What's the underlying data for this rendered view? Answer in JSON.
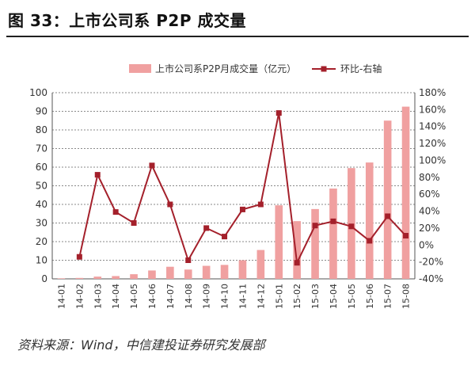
{
  "figure": {
    "title": "图 33：上市公司系 P2P 成交量",
    "source": "资料来源：Wind，中信建投证券研究发展部"
  },
  "colors": {
    "bar": "#f0a0a0",
    "line": "#a4202b",
    "grid": "#8a8a8a",
    "axis": "#555555"
  },
  "chart_data": {
    "type": "bar",
    "categories": [
      "14-01",
      "14-02",
      "14-03",
      "14-04",
      "14-05",
      "14-06",
      "14-07",
      "14-08",
      "14-09",
      "14-10",
      "14-11",
      "14-12",
      "15-01",
      "15-02",
      "15-03",
      "15-04",
      "15-05",
      "15-06",
      "15-07",
      "15-08"
    ],
    "series": [
      {
        "name": "上市公司系P2P月成交量（亿元）",
        "type": "bar",
        "axis": "left",
        "values": [
          0.3,
          0.5,
          1.2,
          1.5,
          2.5,
          4.5,
          6.5,
          5,
          7,
          7.5,
          10,
          15.5,
          39.5,
          31,
          37.5,
          48.5,
          59.5,
          62.5,
          85,
          92.5
        ]
      },
      {
        "name": "环比-右轴",
        "type": "line",
        "axis": "right",
        "values": [
          null,
          -14,
          83,
          39,
          26,
          94,
          48,
          -18,
          20,
          10,
          42,
          48,
          156,
          -21,
          23,
          28,
          22,
          5,
          34,
          11
        ]
      }
    ],
    "y_left": {
      "min": 0,
      "max": 100,
      "step": 10,
      "ticks": [
        "0",
        "10",
        "20",
        "30",
        "40",
        "50",
        "60",
        "70",
        "80",
        "90",
        "100"
      ]
    },
    "y_right": {
      "min": -40,
      "max": 180,
      "step": 20,
      "ticks": [
        "-40%",
        "-20%",
        "0%",
        "20%",
        "40%",
        "60%",
        "80%",
        "100%",
        "120%",
        "140%",
        "160%",
        "180%"
      ]
    },
    "grid": true,
    "legend_position": "top"
  }
}
